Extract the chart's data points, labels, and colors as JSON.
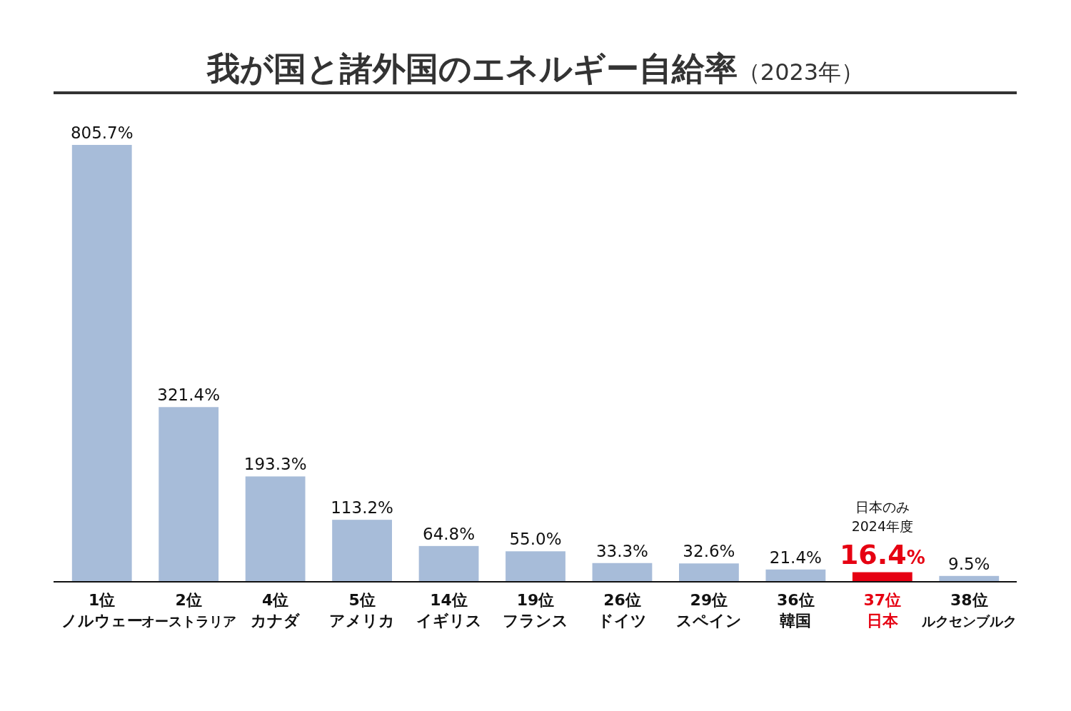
{
  "chart_data": {
    "type": "bar",
    "title": "我が国と諸外国のエネルギー自給率（2023年）",
    "categories": [
      "1位ノルウェー",
      "2位オーストラリア",
      "4位カナダ",
      "5位アメリカ",
      "14位イギリス",
      "19位フランス",
      "26位ドイツ",
      "29位スペイン",
      "36位韓国",
      "37位日本",
      "38位ルクセンブルク"
    ],
    "values": [
      805.7,
      321.4,
      193.3,
      113.2,
      64.8,
      55.0,
      33.3,
      32.6,
      21.4,
      16.4,
      9.5
    ],
    "value_labels": [
      "805.7%",
      "321.4%",
      "193.3%",
      "113.2%",
      "64.8%",
      "55.0%",
      "33.3%",
      "32.6%",
      "21.4%",
      "16.4%",
      "9.5%"
    ],
    "colors": [
      "#a7bcd9",
      "#a7bcd9",
      "#a7bcd9",
      "#a7bcd9",
      "#a7bcd9",
      "#a7bcd9",
      "#a7bcd9",
      "#a7bcd9",
      "#a7bcd9",
      "#e60012",
      "#a7bcd9"
    ],
    "annotations": [
      "日本のみ\n2024年度"
    ]
  }
}
